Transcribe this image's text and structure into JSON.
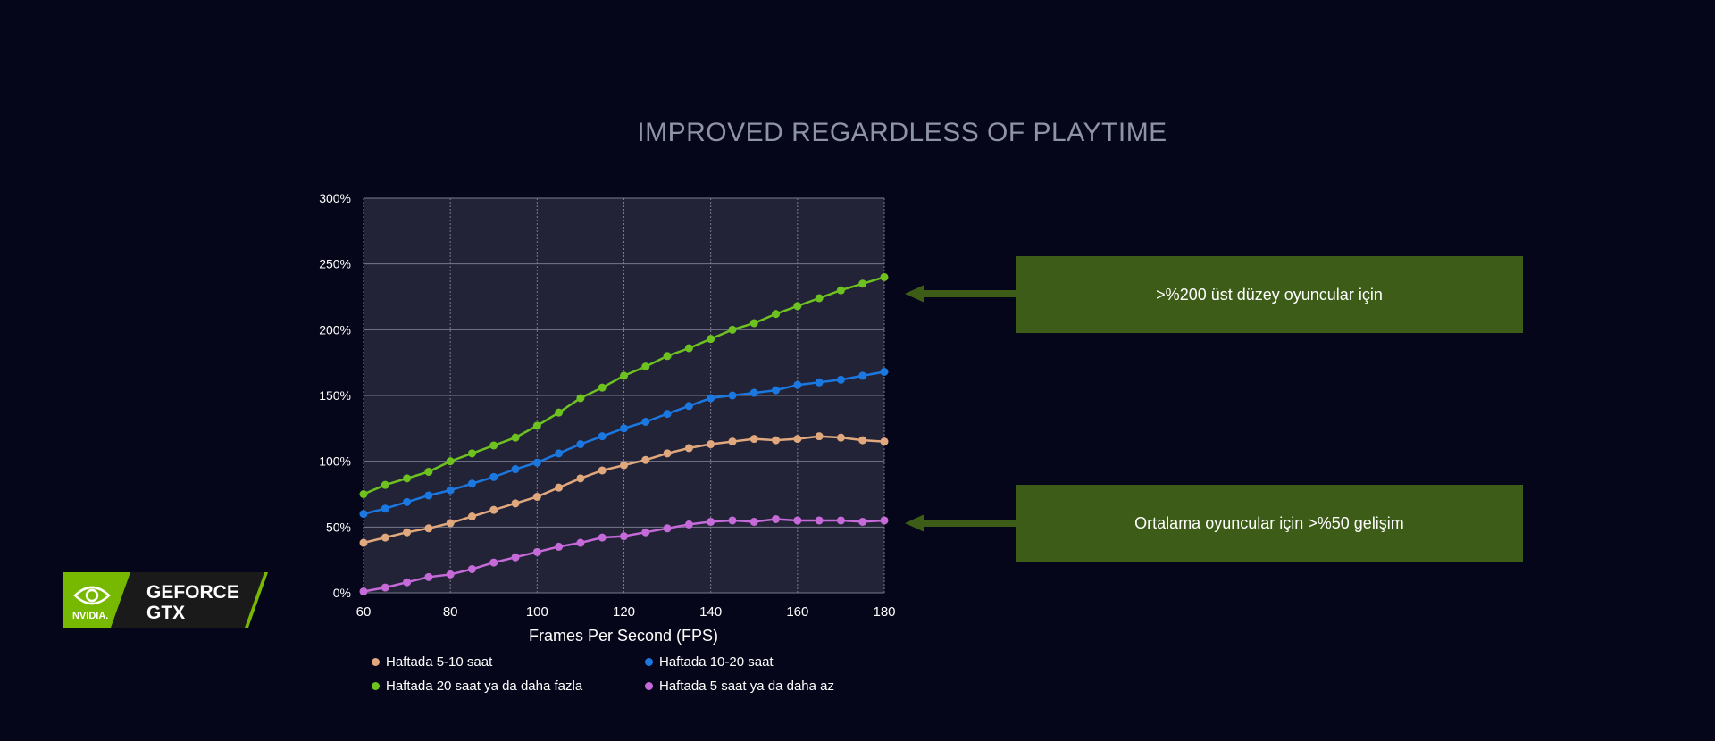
{
  "title": "IMPROVED REGARDLESS OF PLAYTIME",
  "callouts": [
    {
      "text": ">%200 üst düzey oyuncular için",
      "target_series": "Haftada 20 saat ya da daha fazla"
    },
    {
      "text": "Ortalama oyuncular için >%50 gelişim",
      "target_series": "Haftada 5 saat ya da daha az"
    }
  ],
  "logo": {
    "brand": "NVIDIA.",
    "product_line1": "GEFORCE",
    "product_line2": "GTX",
    "accent_color": "#76b900",
    "icon": "nvidia-eye-icon"
  },
  "colors": {
    "background": "#06061a",
    "plot_background": "#232338",
    "grid": "#7a7a8e",
    "callout_background": "#3d5c17",
    "arrow": "#3d5c17"
  },
  "chart_data": {
    "type": "scatter",
    "title": "IMPROVED REGARDLESS OF PLAYTIME",
    "xlabel": "Frames Per Second (FPS)",
    "ylabel": "",
    "xlim": [
      60,
      180
    ],
    "ylim": [
      0,
      300
    ],
    "x_ticks": [
      "60",
      "80",
      "100",
      "120",
      "140",
      "160",
      "180"
    ],
    "y_ticks": [
      "0%",
      "50%",
      "100%",
      "150%",
      "200%",
      "250%",
      "300%"
    ],
    "grid": true,
    "legend_position": "bottom",
    "trend_lines": true,
    "x": [
      60,
      65,
      70,
      75,
      80,
      85,
      90,
      95,
      100,
      105,
      110,
      115,
      120,
      125,
      130,
      135,
      140,
      145,
      150,
      155,
      160,
      165,
      170,
      175,
      180
    ],
    "series": [
      {
        "name": "Haftada 5-10 saat",
        "color": "#e0a87c",
        "values": [
          38,
          42,
          46,
          49,
          53,
          58,
          63,
          68,
          73,
          80,
          87,
          93,
          97,
          101,
          106,
          110,
          113,
          115,
          117,
          116,
          117,
          119,
          118,
          116,
          115
        ]
      },
      {
        "name": "Haftada 10-20 saat",
        "color": "#1a78e0",
        "values": [
          60,
          64,
          69,
          74,
          78,
          83,
          88,
          94,
          99,
          106,
          113,
          119,
          125,
          130,
          136,
          142,
          148,
          150,
          152,
          154,
          158,
          160,
          162,
          165,
          168
        ]
      },
      {
        "name": "Haftada 20 saat ya da daha fazla",
        "color": "#6ec21f",
        "values": [
          75,
          82,
          87,
          92,
          100,
          106,
          112,
          118,
          127,
          137,
          148,
          156,
          165,
          172,
          180,
          186,
          193,
          200,
          205,
          212,
          218,
          224,
          230,
          235,
          240
        ]
      },
      {
        "name": "Haftada 5 saat ya da daha az",
        "color": "#c56ad8",
        "values": [
          1,
          4,
          8,
          12,
          14,
          18,
          23,
          27,
          31,
          35,
          38,
          42,
          43,
          46,
          49,
          52,
          54,
          55,
          54,
          56,
          55,
          55,
          55,
          54,
          55
        ]
      }
    ]
  }
}
